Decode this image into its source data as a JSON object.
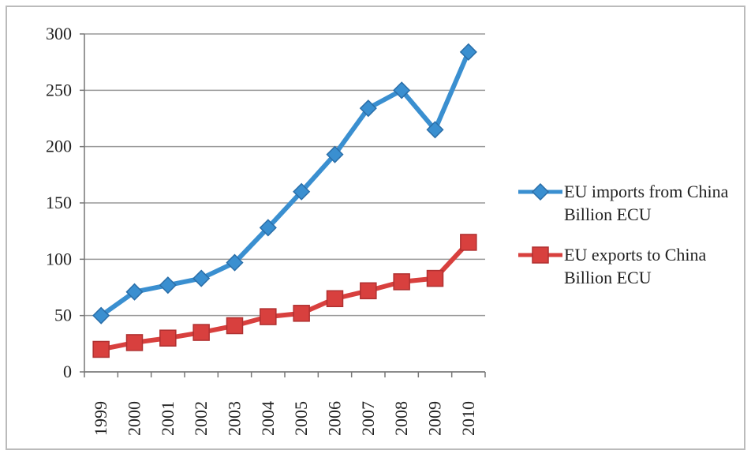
{
  "chart_data": {
    "type": "line",
    "categories": [
      "1999",
      "2000",
      "2001",
      "2002",
      "2003",
      "2004",
      "2005",
      "2006",
      "2007",
      "2008",
      "2009",
      "2010"
    ],
    "series": [
      {
        "name": "EU imports from China Billion ECU",
        "color": "#3a8fd0",
        "marker": "diamond",
        "values": [
          50,
          71,
          77,
          83,
          97,
          128,
          160,
          193,
          234,
          250,
          215,
          284
        ]
      },
      {
        "name": "EU exports to China Billion ECU",
        "color": "#d8403e",
        "marker": "square",
        "values": [
          20,
          26,
          30,
          35,
          41,
          49,
          52,
          65,
          72,
          80,
          83,
          115
        ]
      }
    ],
    "ylim": [
      0,
      300
    ],
    "yticks": [
      0,
      50,
      100,
      150,
      200,
      250,
      300
    ],
    "grid": true,
    "legend": "right"
  }
}
